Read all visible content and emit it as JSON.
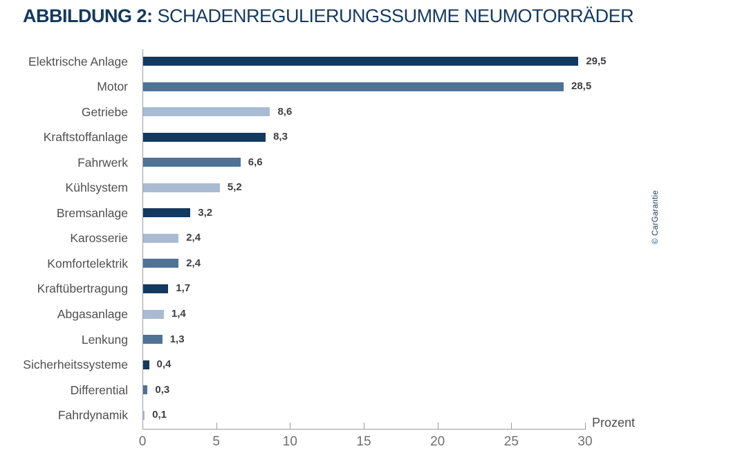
{
  "title": {
    "prefix": "ABBILDUNG 2:",
    "text": "SCHADENREGULIERUNGSSUMME NEUMOTORRÄDER"
  },
  "copyright": "© CarGarantie",
  "chart_data": {
    "type": "bar",
    "orientation": "horizontal",
    "title": "ABBILDUNG 2: SCHADENREGULIERUNGSSUMME NEUMOTORRÄDER",
    "categories": [
      "Elektrische Anlage",
      "Motor",
      "Getriebe",
      "Kraftstoffanlage",
      "Fahrwerk",
      "Kühlsystem",
      "Bremsanlage",
      "Karosserie",
      "Komfortelektrik",
      "Kraftübertragung",
      "Abgasanlage",
      "Lenkung",
      "Sicherheitssysteme",
      "Differential",
      "Fahrdynamik"
    ],
    "values": [
      29.5,
      28.5,
      8.6,
      8.3,
      6.6,
      5.2,
      3.2,
      2.4,
      2.4,
      1.7,
      1.4,
      1.3,
      0.4,
      0.3,
      0.1
    ],
    "value_labels": [
      "29,5",
      "28,5",
      "8,6",
      "8,3",
      "6,6",
      "5,2",
      "3,2",
      "2,4",
      "2,4",
      "1,7",
      "1,4",
      "1,3",
      "0,4",
      "0,3",
      "0,1"
    ],
    "bar_colors": [
      "#14395E",
      "#4E7396",
      "#A9BBD3",
      "#14395E",
      "#4E7396",
      "#A9BBD3",
      "#14395E",
      "#A9BBD3",
      "#4E7396",
      "#14395E",
      "#A9BBD3",
      "#4E7396",
      "#14395E",
      "#4E7396",
      "#A9BBD3"
    ],
    "xlabel": "Prozent",
    "ylabel": "",
    "xlim": [
      0,
      30
    ],
    "xticks": [
      0,
      5,
      10,
      15,
      20,
      25,
      30
    ],
    "grid": false,
    "legend_position": "none",
    "palette": {
      "dark_navy": "#14395E",
      "medium_slate": "#4E7396",
      "light_blue_gray": "#A9BBD3"
    }
  },
  "colors": {
    "title": "#14395E",
    "axis": "#9B9B9B",
    "category_label": "#4F4F4F",
    "value_label": "#3E3E42",
    "tick_label": "#6E6E6E",
    "copyright": "#1A4066"
  }
}
